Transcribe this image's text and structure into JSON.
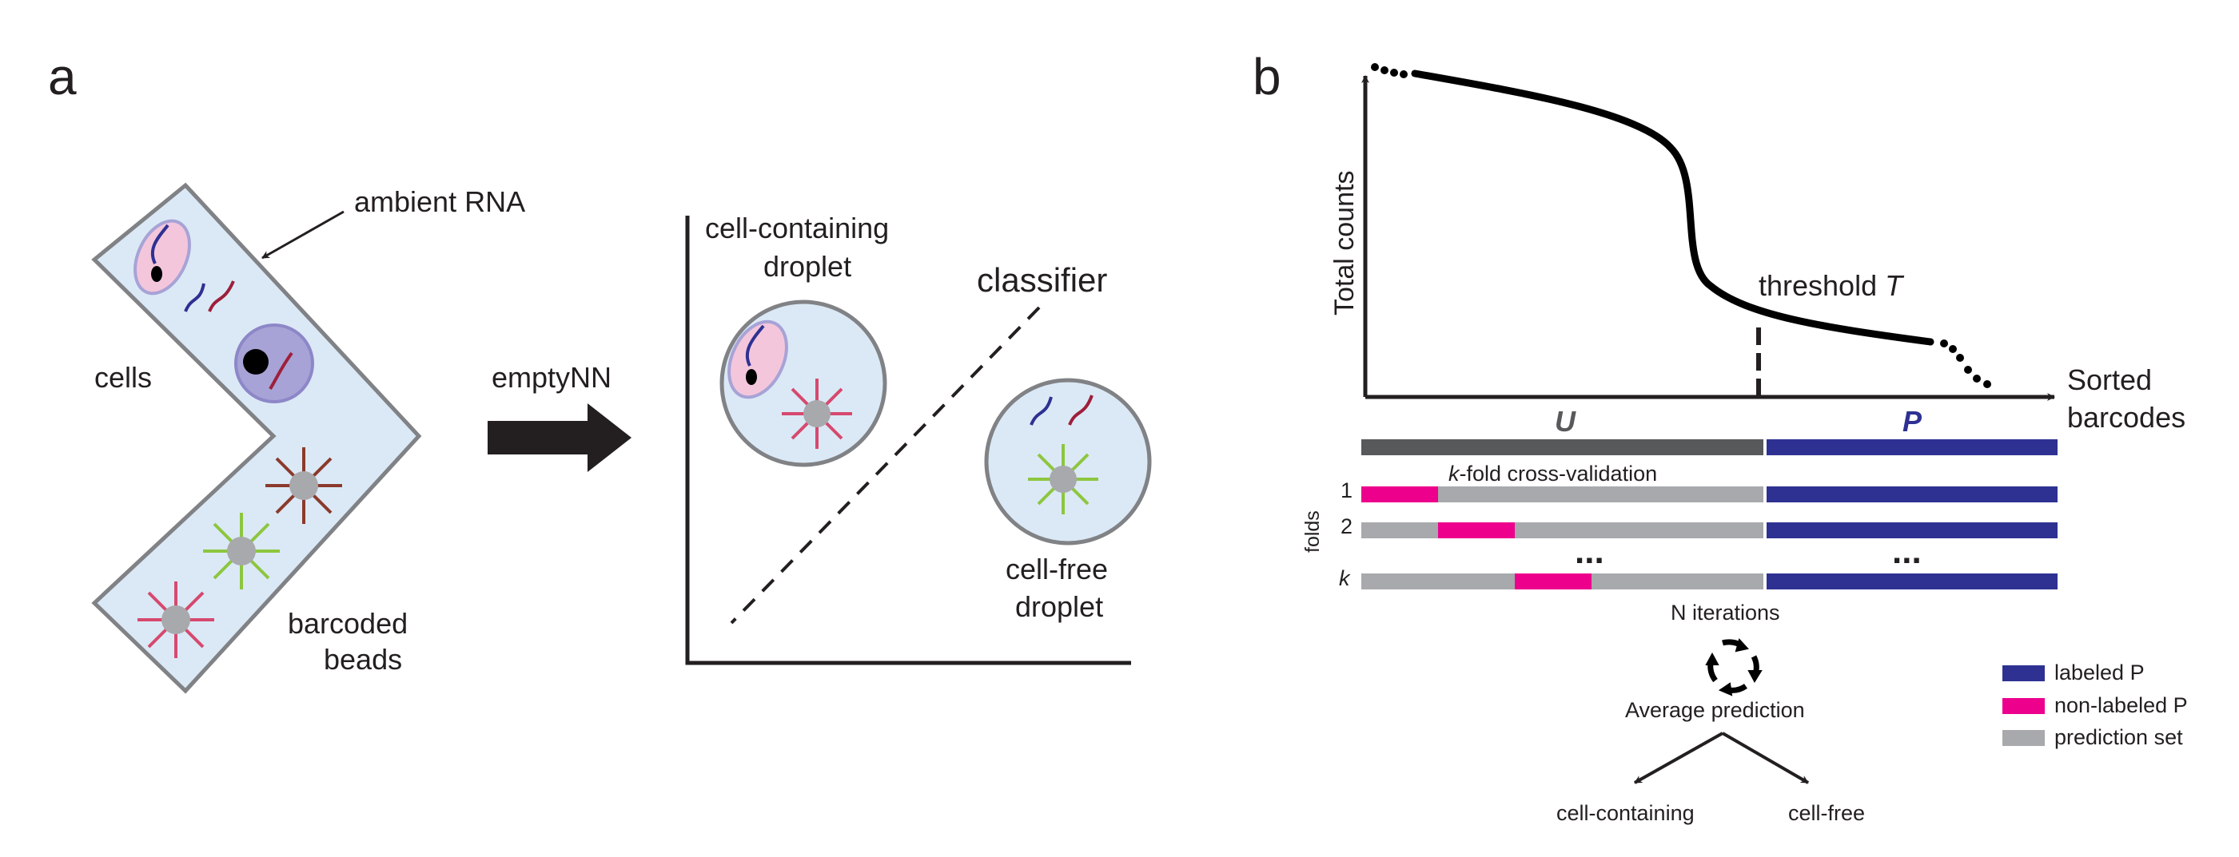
{
  "panel_a": {
    "letter": "a",
    "ambient_label": "ambient RNA",
    "cells_label": "cells",
    "beads_label_1": "barcoded",
    "beads_label_2": "beads",
    "arrow_label": "emptyNN",
    "cell_droplet_label_1": "cell-containing",
    "cell_droplet_label_2": "droplet",
    "classifier_label": "classifier",
    "free_droplet_label_1": "cell-free",
    "free_droplet_label_2": "droplet"
  },
  "panel_b": {
    "letter": "b",
    "y_axis_label": "Total counts",
    "x_axis_label_1": "Sorted",
    "x_axis_label_2": "barcodes",
    "threshold_label": "threshold",
    "threshold_var": "T",
    "u_label": "U",
    "p_label": "P",
    "cv_var": "k",
    "cv_label": "-fold cross-validation",
    "folds_label": "folds",
    "fold_labels": [
      "1",
      "2",
      "k"
    ],
    "ellipsis": "...",
    "iterations_label": "N iterations",
    "average_label": "Average prediction",
    "outcome_left": "cell-containing",
    "outcome_right": "cell-free",
    "legend": [
      {
        "label": "labeled P",
        "color": "#2e3192"
      },
      {
        "label": "non-labeled P",
        "color": "#ec008c"
      },
      {
        "label": "prediction set",
        "color": "#a7a9ac"
      }
    ]
  },
  "colors": {
    "droplet_fill": "#dbe9f6",
    "outline_gray": "#808285",
    "bead_gray": "#a7a9ac",
    "u_bar": "#58595b",
    "labeled_p": "#2e3192",
    "nonlabeled_p": "#ec008c",
    "rna_blue": "#2e3192",
    "rna_red": "#9e1f3a",
    "bead_red_arms": "#d6496e",
    "bead_brown_arms": "#8b3a2b",
    "bead_green_arms": "#8dc63f",
    "cell_pink": "#f4c6dc",
    "cell_purple": "#a7a3d6"
  },
  "icons": [
    "cycle-arrows-icon",
    "arrow-right-icon"
  ]
}
